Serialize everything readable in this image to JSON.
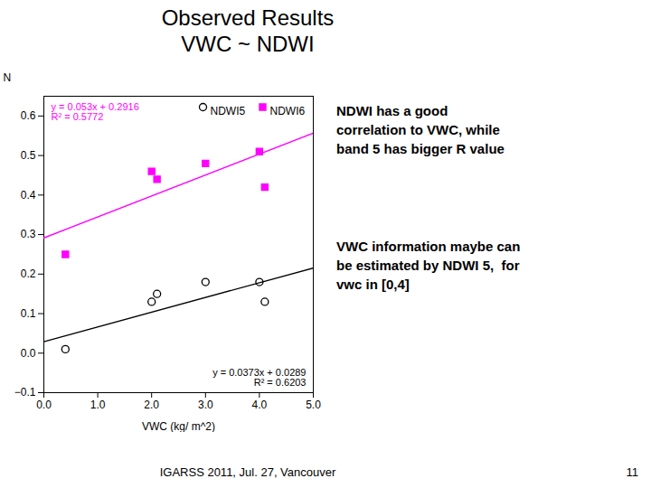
{
  "chart_data": {
    "type": "scatter",
    "title": "Observed Results\nVWC ~ NDWI",
    "xlabel": "VWC (kg/ m^2)",
    "ylabel": "N",
    "xlim": [
      0,
      5
    ],
    "ylim": [
      -0.1,
      0.65
    ],
    "xticks": [
      0,
      1,
      2,
      3,
      4,
      5
    ],
    "yticks": [
      -0.1,
      0,
      0.1,
      0.2,
      0.3,
      0.4,
      0.5,
      0.6
    ],
    "grid": false,
    "legend": "upper right",
    "series": [
      {
        "name": "NDWI5",
        "type": "scatter",
        "marker": "open_circle",
        "color": "#000000",
        "x": [
          0.4,
          2.0,
          2.1,
          3.0,
          4.0,
          4.1
        ],
        "values": [
          0.01,
          0.13,
          0.15,
          0.18,
          0.18,
          0.13
        ]
      },
      {
        "name": "NDWI6",
        "type": "scatter",
        "marker": "square",
        "color": "#ff00ff",
        "x": [
          0.4,
          2.0,
          2.1,
          3.0,
          4.0,
          4.1
        ],
        "values": [
          0.25,
          0.46,
          0.44,
          0.48,
          0.51,
          0.42
        ]
      },
      {
        "type": "line",
        "color": "#000000",
        "x": [
          0,
          5
        ],
        "values": [
          0.0289,
          0.2154
        ]
      },
      {
        "type": "line",
        "color": "#ff00ff",
        "x": [
          0,
          5
        ],
        "values": [
          0.2916,
          0.5566
        ]
      }
    ],
    "annotations": [
      {
        "text": "y = 0.053x + 0.2916\nR² = 0.5772",
        "color": "#ff00ff"
      },
      {
        "text": "y = 0.0373x + 0.0289\nR² = 0.6203",
        "color": "#000000"
      },
      {
        "text": "NDWI has a good\ncorrelation to VWC, while\nband 5 has bigger R value"
      },
      {
        "text": "VWC information maybe can\nbe estimated by NDWI 5,  for\nvwc in [0,4]"
      },
      {
        "text": "IGARSS 2011, Jul. 27, Vancouver"
      },
      {
        "text": "11"
      }
    ]
  }
}
